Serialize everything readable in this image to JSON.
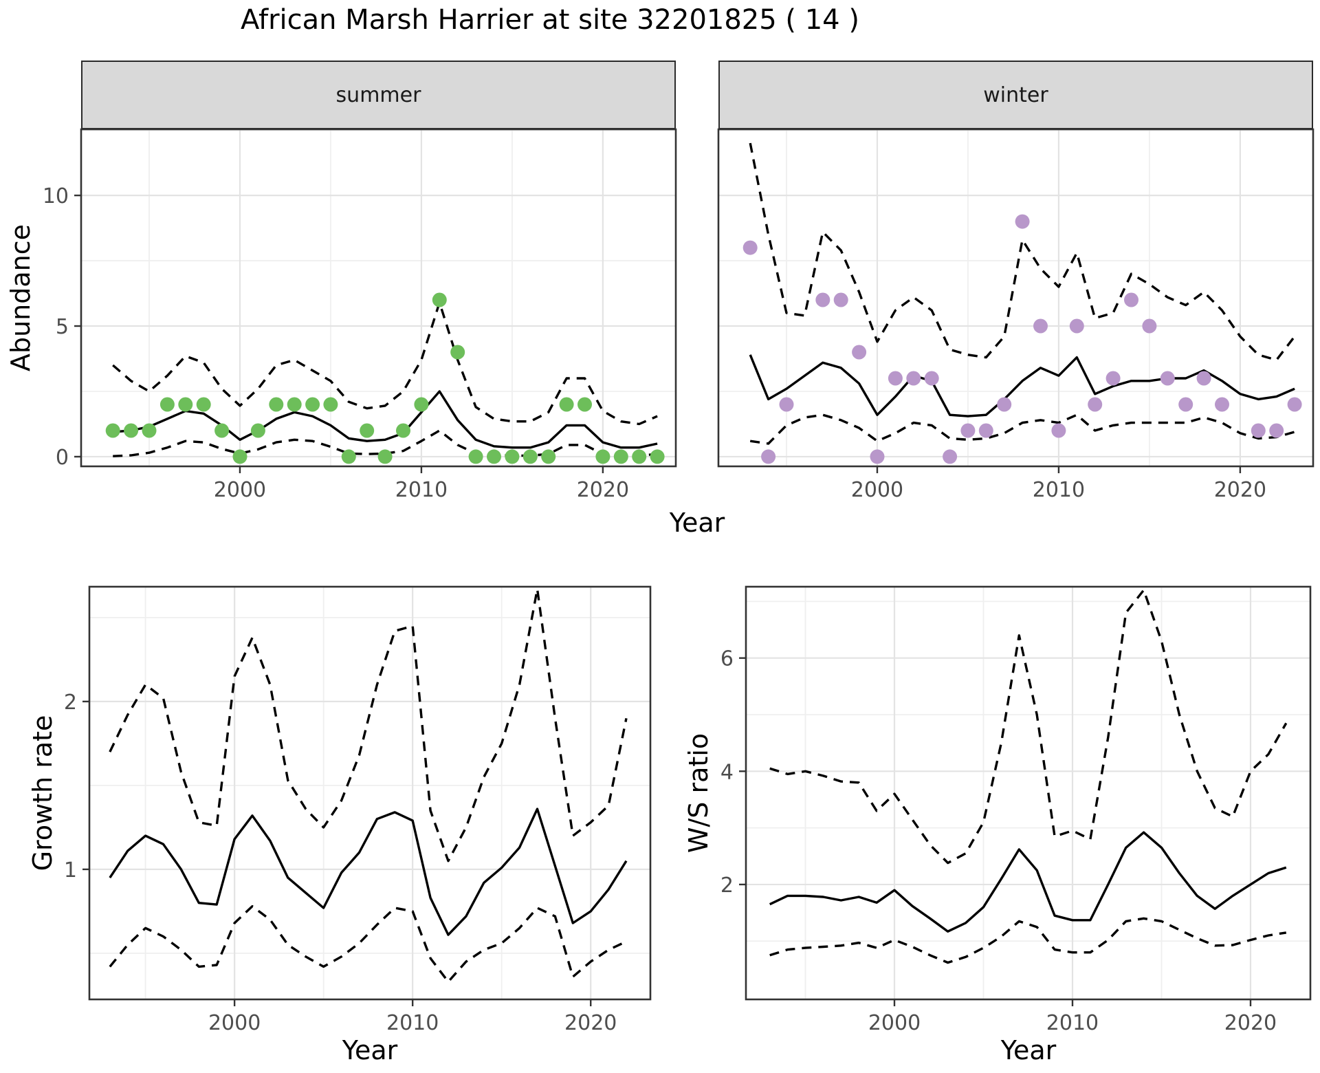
{
  "title": "African Marsh Harrier at site 32201825 ( 14 )",
  "colors": {
    "summer_point": "#6dbe5a",
    "winter_point": "#b897ca",
    "line": "#000000",
    "strip_fill": "#d9d9d9",
    "panel_border": "#333333",
    "grid_major": "#e3e3e3",
    "grid_minor": "#efefef",
    "tick_label": "#4d4d4d"
  },
  "chart_data": [
    {
      "type": "line",
      "facet_label": "summer",
      "xlabel": "Year",
      "ylabel": "Abundance",
      "x": [
        1993,
        1994,
        1995,
        1996,
        1997,
        1998,
        1999,
        2000,
        2001,
        2002,
        2003,
        2004,
        2005,
        2006,
        2007,
        2008,
        2009,
        2010,
        2011,
        2012,
        2013,
        2014,
        2015,
        2016,
        2017,
        2018,
        2019,
        2020,
        2021,
        2022,
        2023
      ],
      "series": [
        {
          "name": "observed",
          "style": "points",
          "color": "#6dbe5a",
          "values": [
            1,
            1,
            1,
            2,
            2,
            2,
            1,
            0,
            1,
            2,
            2,
            2,
            2,
            0,
            1,
            0,
            1,
            2,
            6,
            4,
            0,
            0,
            0,
            0,
            0,
            2,
            2,
            0,
            0,
            0,
            0
          ]
        },
        {
          "name": "fitted",
          "style": "solid",
          "color": "#000000",
          "values": [
            0.95,
            1.0,
            1.15,
            1.45,
            1.75,
            1.65,
            1.2,
            0.65,
            1.0,
            1.45,
            1.7,
            1.55,
            1.2,
            0.7,
            0.6,
            0.65,
            0.9,
            1.7,
            2.5,
            1.4,
            0.65,
            0.4,
            0.35,
            0.35,
            0.55,
            1.2,
            1.2,
            0.55,
            0.35,
            0.35,
            0.5
          ]
        },
        {
          "name": "upper_ci",
          "style": "dashed",
          "color": "#000000",
          "values": [
            3.5,
            2.9,
            2.5,
            3.1,
            3.85,
            3.6,
            2.6,
            1.95,
            2.6,
            3.5,
            3.7,
            3.3,
            2.9,
            2.1,
            1.85,
            1.95,
            2.5,
            3.7,
            5.9,
            3.7,
            1.9,
            1.45,
            1.35,
            1.35,
            1.7,
            3.0,
            3.0,
            1.75,
            1.35,
            1.25,
            1.55
          ]
        },
        {
          "name": "lower_ci",
          "style": "dashed",
          "color": "#000000",
          "values": [
            0.02,
            0.05,
            0.15,
            0.35,
            0.6,
            0.55,
            0.3,
            0.12,
            0.28,
            0.55,
            0.65,
            0.6,
            0.38,
            0.12,
            0.1,
            0.12,
            0.22,
            0.6,
            1.0,
            0.45,
            0.12,
            0.05,
            0.04,
            0.04,
            0.1,
            0.45,
            0.45,
            0.1,
            0.04,
            0.04,
            0.1
          ]
        }
      ],
      "xlim": [
        1991.25,
        2024.02
      ],
      "ylim": [
        -0.37,
        12.53
      ],
      "xticks": [
        2000,
        2010,
        2020
      ],
      "xminor": [
        1995,
        2005,
        2015
      ],
      "yticks": [
        0,
        5,
        10
      ],
      "yminor": [
        2.5,
        7.5,
        12.5
      ],
      "grid": true,
      "legend": "none"
    },
    {
      "type": "line",
      "facet_label": "winter",
      "xlabel": "Year",
      "ylabel": "Abundance",
      "x": [
        1993,
        1994,
        1995,
        1996,
        1997,
        1998,
        1999,
        2000,
        2001,
        2002,
        2003,
        2004,
        2005,
        2006,
        2007,
        2008,
        2009,
        2010,
        2011,
        2012,
        2013,
        2014,
        2015,
        2016,
        2017,
        2018,
        2019,
        2020,
        2021,
        2022,
        2023
      ],
      "series": [
        {
          "name": "observed",
          "style": "points",
          "color": "#b897ca",
          "values": [
            8,
            0,
            2,
            null,
            6,
            6,
            4,
            0,
            3,
            3,
            3,
            0,
            1,
            1,
            2,
            9,
            5,
            1,
            5,
            2,
            3,
            6,
            5,
            3,
            2,
            3,
            2,
            null,
            1,
            1,
            2
          ]
        },
        {
          "name": "fitted",
          "style": "solid",
          "color": "#000000",
          "values": [
            3.9,
            2.2,
            2.6,
            3.1,
            3.6,
            3.4,
            2.8,
            1.6,
            2.3,
            3.1,
            2.9,
            1.6,
            1.55,
            1.6,
            2.2,
            2.9,
            3.4,
            3.1,
            3.8,
            2.4,
            2.7,
            2.9,
            2.9,
            3.0,
            3.0,
            3.3,
            2.9,
            2.4,
            2.2,
            2.3,
            2.6
          ]
        },
        {
          "name": "upper_ci",
          "style": "dashed",
          "color": "#000000",
          "values": [
            12.0,
            8.5,
            5.5,
            5.4,
            8.6,
            7.9,
            6.3,
            4.4,
            5.6,
            6.1,
            5.6,
            4.1,
            3.9,
            3.8,
            4.6,
            8.3,
            7.2,
            6.5,
            7.8,
            5.3,
            5.5,
            7.0,
            6.6,
            6.1,
            5.8,
            6.3,
            5.6,
            4.6,
            3.9,
            3.7,
            4.6
          ]
        },
        {
          "name": "lower_ci",
          "style": "dashed",
          "color": "#000000",
          "values": [
            0.6,
            0.5,
            1.2,
            1.5,
            1.6,
            1.4,
            1.1,
            0.6,
            0.9,
            1.3,
            1.2,
            0.7,
            0.65,
            0.7,
            0.9,
            1.3,
            1.4,
            1.3,
            1.6,
            1.0,
            1.2,
            1.3,
            1.3,
            1.3,
            1.3,
            1.5,
            1.3,
            0.9,
            0.7,
            0.75,
            0.95
          ]
        }
      ],
      "xlim": [
        1991.25,
        2024.02
      ],
      "ylim": [
        -0.37,
        12.53
      ],
      "xticks": [
        2000,
        2010,
        2020
      ],
      "xminor": [
        1995,
        2005,
        2015
      ],
      "yticks": [
        0,
        5,
        10
      ],
      "yminor": [
        2.5,
        7.5,
        12.5
      ],
      "grid": true,
      "legend": "none"
    },
    {
      "type": "line",
      "facet_label": null,
      "xlabel": "Year",
      "ylabel": "Growth rate",
      "x": [
        1993,
        1994,
        1995,
        1996,
        1997,
        1998,
        1999,
        2000,
        2001,
        2002,
        2003,
        2004,
        2005,
        2006,
        2007,
        2008,
        2009,
        2010,
        2011,
        2012,
        2013,
        2014,
        2015,
        2016,
        2017,
        2018,
        2019,
        2020,
        2021,
        2022
      ],
      "series": [
        {
          "name": "fitted",
          "style": "solid",
          "color": "#000000",
          "values": [
            0.95,
            1.11,
            1.2,
            1.15,
            1.0,
            0.8,
            0.79,
            1.18,
            1.32,
            1.17,
            0.95,
            0.86,
            0.77,
            0.98,
            1.1,
            1.3,
            1.34,
            1.29,
            0.83,
            0.61,
            0.72,
            0.92,
            1.01,
            1.13,
            1.36,
            1.02,
            0.68,
            0.75,
            0.88,
            1.05
          ]
        },
        {
          "name": "upper_ci",
          "style": "dashed",
          "color": "#000000",
          "values": [
            1.7,
            1.92,
            2.1,
            2.02,
            1.58,
            1.28,
            1.26,
            2.15,
            2.38,
            2.1,
            1.53,
            1.36,
            1.25,
            1.41,
            1.68,
            2.1,
            2.42,
            2.45,
            1.35,
            1.05,
            1.25,
            1.55,
            1.75,
            2.1,
            2.67,
            1.9,
            1.2,
            1.28,
            1.38,
            1.9
          ]
        },
        {
          "name": "lower_ci",
          "style": "dashed",
          "color": "#000000",
          "values": [
            0.42,
            0.55,
            0.65,
            0.6,
            0.52,
            0.42,
            0.43,
            0.68,
            0.78,
            0.7,
            0.55,
            0.48,
            0.42,
            0.48,
            0.56,
            0.67,
            0.77,
            0.75,
            0.47,
            0.33,
            0.45,
            0.52,
            0.56,
            0.65,
            0.77,
            0.72,
            0.36,
            0.45,
            0.52,
            0.57
          ]
        }
      ],
      "xlim": [
        1991.85,
        2023.35
      ],
      "ylim": [
        0.225,
        2.684
      ],
      "xticks": [
        2000,
        2010,
        2020
      ],
      "xminor": [
        1995,
        2005,
        2015
      ],
      "yticks": [
        1,
        2
      ],
      "yminor": [
        0.5,
        1.5,
        2.5
      ],
      "grid": true,
      "legend": "none"
    },
    {
      "type": "line",
      "facet_label": null,
      "xlabel": "Year",
      "ylabel": "W/S ratio",
      "x": [
        1993,
        1994,
        1995,
        1996,
        1997,
        1998,
        1999,
        2000,
        2001,
        2002,
        2003,
        2004,
        2005,
        2006,
        2007,
        2008,
        2009,
        2010,
        2011,
        2012,
        2013,
        2014,
        2015,
        2016,
        2017,
        2018,
        2019,
        2020,
        2021,
        2022
      ],
      "series": [
        {
          "name": "fitted",
          "style": "solid",
          "color": "#000000",
          "values": [
            1.65,
            1.8,
            1.8,
            1.78,
            1.72,
            1.78,
            1.68,
            1.9,
            1.62,
            1.4,
            1.17,
            1.32,
            1.6,
            2.1,
            2.62,
            2.25,
            1.45,
            1.37,
            1.37,
            2.0,
            2.65,
            2.92,
            2.65,
            2.2,
            1.8,
            1.57,
            1.8,
            2.0,
            2.2,
            2.3
          ]
        },
        {
          "name": "upper_ci",
          "style": "dashed",
          "color": "#000000",
          "values": [
            4.05,
            3.95,
            4.0,
            3.92,
            3.82,
            3.8,
            3.3,
            3.6,
            3.15,
            2.7,
            2.38,
            2.55,
            3.1,
            4.5,
            6.4,
            5.0,
            2.85,
            2.95,
            2.8,
            4.6,
            6.8,
            7.2,
            6.3,
            5.0,
            4.0,
            3.35,
            3.2,
            4.0,
            4.3,
            4.85
          ]
        },
        {
          "name": "lower_ci",
          "style": "dashed",
          "color": "#000000",
          "values": [
            0.75,
            0.85,
            0.88,
            0.9,
            0.92,
            0.97,
            0.88,
            1.02,
            0.9,
            0.75,
            0.62,
            0.72,
            0.88,
            1.08,
            1.35,
            1.25,
            0.85,
            0.8,
            0.8,
            1.02,
            1.35,
            1.4,
            1.35,
            1.2,
            1.05,
            0.92,
            0.93,
            1.02,
            1.1,
            1.15
          ]
        }
      ],
      "xlim": [
        1991.66,
        2023.36
      ],
      "ylim": [
        -0.03,
        7.26
      ],
      "xticks": [
        2000,
        2010,
        2020
      ],
      "xminor": [
        1995,
        2005,
        2015
      ],
      "yticks": [
        2,
        4,
        6
      ],
      "yminor": [
        1,
        3,
        5,
        7
      ],
      "grid": true,
      "legend": "none"
    }
  ]
}
